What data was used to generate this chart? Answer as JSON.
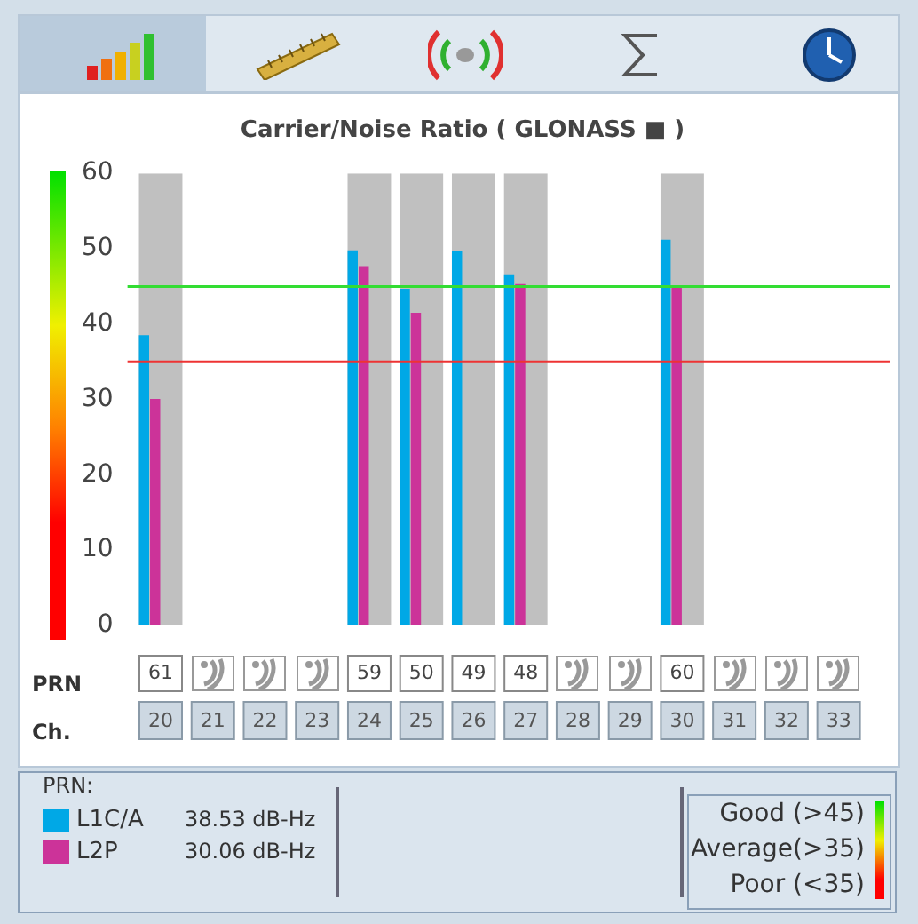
{
  "chart_data": {
    "type": "bar",
    "title": "Carrier/Noise Ratio ( GLONASS ■ )",
    "categories": [
      "20",
      "21",
      "22",
      "23",
      "24",
      "25",
      "26",
      "27",
      "28",
      "29",
      "30",
      "31",
      "32",
      "33"
    ],
    "series": [
      {
        "color": "#c0c0c0",
        "values": [
          60,
          null,
          null,
          null,
          60,
          60,
          60,
          60,
          null,
          null,
          60,
          null,
          null,
          null
        ]
      },
      {
        "name": "L1C/A",
        "color": "#00a8e6",
        "values": [
          38.53,
          null,
          null,
          null,
          49.8,
          44.7,
          49.7,
          46.6,
          null,
          null,
          51.2,
          null,
          null,
          null
        ]
      },
      {
        "name": "L2P",
        "color": "#cc3399",
        "values": [
          30.06,
          null,
          null,
          null,
          47.7,
          41.5,
          null,
          45.3,
          null,
          null,
          45.1,
          null,
          null,
          null
        ]
      }
    ],
    "ylim": [
      0,
      60
    ],
    "yticks": [
      0,
      10,
      20,
      30,
      40,
      50,
      60
    ],
    "grid": false,
    "legend": "bottom",
    "ref_lines": [
      {
        "axis": "y",
        "value": 45,
        "color": "#33dd33"
      },
      {
        "axis": "y",
        "value": 35,
        "color": "#ee3333"
      }
    ],
    "annotations": [
      "PRN",
      "Ch.",
      "PRN:",
      "38.53 dB-Hz",
      "30.06 dB-Hz",
      "Good (>45)",
      "Average(>35)",
      "Poor (<35)",
      "61",
      "59",
      "50",
      "49",
      "48",
      "60"
    ]
  }
}
